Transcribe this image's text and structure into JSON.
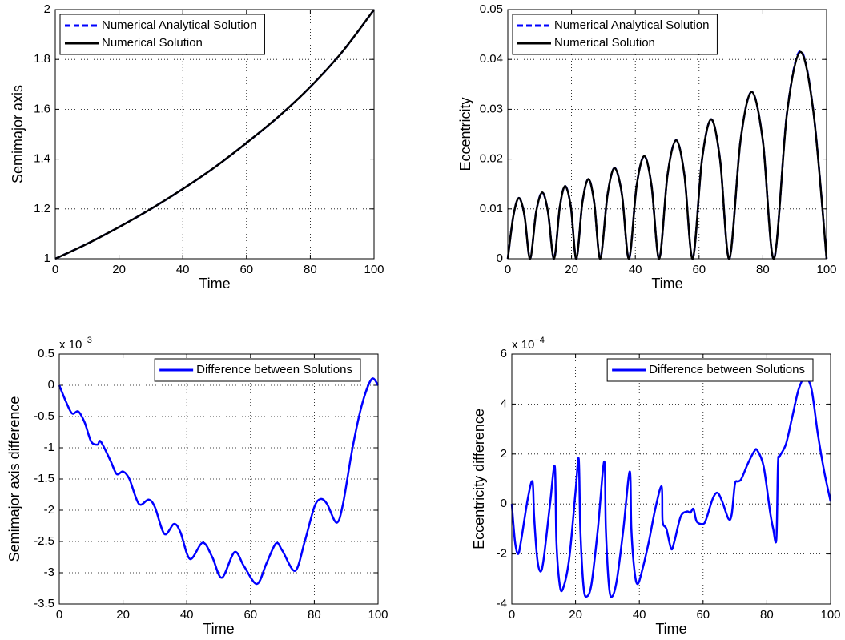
{
  "chart_data": [
    {
      "type": "line",
      "xlabel": "Time",
      "ylabel": "Semimajor axis",
      "x": [
        0,
        10,
        20,
        30,
        40,
        50,
        60,
        70,
        80,
        90,
        100
      ],
      "series": [
        {
          "name": "Numerical Analytical Solution",
          "color": "#0000ff",
          "linestyle": "dashed",
          "values": [
            1,
            1.06,
            1.127,
            1.2,
            1.28,
            1.367,
            1.465,
            1.57,
            1.69,
            1.83,
            2
          ]
        },
        {
          "name": "Numerical Solution",
          "color": "#000000",
          "linestyle": "solid",
          "values": [
            1,
            1.06,
            1.127,
            1.2,
            1.28,
            1.367,
            1.465,
            1.57,
            1.69,
            1.83,
            2
          ]
        }
      ],
      "xlim": [
        0,
        100
      ],
      "ylim": [
        1,
        2
      ],
      "xticks": [
        0,
        20,
        40,
        60,
        80,
        100
      ],
      "yticks": [
        1,
        1.2,
        1.4,
        1.6,
        1.8,
        2
      ],
      "grid": true,
      "legend": "upper left"
    },
    {
      "type": "line",
      "xlabel": "Time",
      "ylabel": "Eccentricity",
      "x": [
        0,
        1.75,
        3.5,
        5.25,
        7,
        8.9,
        10.8,
        12.6,
        14.5,
        16.3,
        18,
        19.8,
        21.5,
        23.4,
        25.3,
        27.1,
        29,
        31.3,
        33.5,
        35.8,
        38,
        40.4,
        42.8,
        45.1,
        47.5,
        50.1,
        52.8,
        55.4,
        58,
        60.9,
        63.8,
        66.6,
        69.5,
        73,
        76.5,
        80,
        83.5,
        87.6,
        91.8,
        95.9,
        100
      ],
      "series": [
        {
          "name": "Numerical Analytical Solution",
          "color": "#0000ff",
          "linestyle": "dashed",
          "values": [
            0,
            0.0086,
            0.0122,
            0.0086,
            0,
            0.0094,
            0.0133,
            0.0094,
            0,
            0.0103,
            0.0146,
            0.0103,
            0,
            0.0113,
            0.016,
            0.0113,
            0,
            0.0129,
            0.0182,
            0.0129,
            0,
            0.0146,
            0.0206,
            0.0146,
            0,
            0.0168,
            0.0238,
            0.0168,
            0,
            0.0198,
            0.028,
            0.0198,
            0,
            0.0237,
            0.0335,
            0.0237,
            0,
            0.0294,
            0.0417,
            0.0294,
            0
          ]
        },
        {
          "name": "Numerical Solution",
          "color": "#000000",
          "linestyle": "solid",
          "values": [
            0,
            0.0086,
            0.0122,
            0.0086,
            0,
            0.0094,
            0.0133,
            0.0094,
            0,
            0.0103,
            0.0146,
            0.0103,
            0,
            0.0113,
            0.016,
            0.0113,
            0,
            0.0129,
            0.0182,
            0.0129,
            0,
            0.0146,
            0.0206,
            0.0146,
            0,
            0.0168,
            0.0238,
            0.0168,
            0,
            0.0198,
            0.028,
            0.0198,
            0,
            0.0237,
            0.0335,
            0.0237,
            0,
            0.0293,
            0.0415,
            0.0293,
            0
          ]
        }
      ],
      "xlim": [
        0,
        100
      ],
      "ylim": [
        0,
        0.05
      ],
      "xticks": [
        0,
        20,
        40,
        60,
        80,
        100
      ],
      "yticks": [
        0,
        0.01,
        0.02,
        0.03,
        0.04,
        0.05
      ],
      "grid": true,
      "legend": "upper left"
    },
    {
      "type": "line",
      "xlabel": "Time",
      "ylabel": "Semimajor axis difference",
      "multiplier_base": "x 10",
      "multiplier_exponent": "−3",
      "x": [
        0,
        2,
        4,
        6,
        8,
        10,
        12,
        13,
        16,
        18,
        20,
        22,
        25,
        28,
        30,
        33,
        36,
        38,
        41,
        45,
        48,
        51,
        55,
        58,
        62,
        65,
        68,
        70,
        74,
        77,
        80,
        82,
        84,
        87,
        89,
        92,
        95,
        98,
        100
      ],
      "series": [
        {
          "name": "Difference between Solutions",
          "color": "#0000ff",
          "linestyle": "solid",
          "values": [
            0,
            -0.25,
            -0.45,
            -0.42,
            -0.6,
            -0.9,
            -0.95,
            -0.9,
            -1.2,
            -1.42,
            -1.38,
            -1.5,
            -1.9,
            -1.83,
            -1.95,
            -2.38,
            -2.22,
            -2.35,
            -2.78,
            -2.52,
            -2.75,
            -3.08,
            -2.67,
            -2.9,
            -3.18,
            -2.85,
            -2.53,
            -2.65,
            -2.97,
            -2.5,
            -1.95,
            -1.82,
            -1.9,
            -2.2,
            -1.9,
            -1.0,
            -0.3,
            0.1,
            0
          ]
        }
      ],
      "xlim": [
        0,
        100
      ],
      "ylim": [
        -3.5,
        0.5
      ],
      "xticks": [
        0,
        20,
        40,
        60,
        80,
        100
      ],
      "yticks": [
        -3.5,
        -3,
        -2.5,
        -2,
        -1.5,
        -1,
        -0.5,
        0,
        0.5
      ],
      "grid": true,
      "legend": "upper right"
    },
    {
      "type": "line",
      "xlabel": "Time",
      "ylabel": "Eccentricity difference",
      "multiplier_base": "x 10",
      "multiplier_exponent": "−4",
      "x": [
        0,
        1,
        2,
        3,
        5,
        6.5,
        7,
        8,
        9,
        10,
        12,
        13.5,
        14,
        15,
        16,
        18,
        20,
        21,
        21.5,
        22.5,
        23.5,
        25,
        27,
        29,
        29.5,
        30.5,
        31.5,
        33,
        35,
        37,
        37.5,
        38.5,
        39.5,
        41,
        43,
        45,
        47,
        47.3,
        48.5,
        50,
        51,
        53,
        55,
        56,
        57,
        58,
        60,
        61,
        63,
        64.5,
        66,
        68,
        69,
        70,
        71,
        72,
        74,
        76,
        77,
        79,
        81,
        82,
        83,
        83.5,
        84,
        86,
        88,
        90,
        92,
        94,
        96,
        98,
        100
      ],
      "series": [
        {
          "name": "Difference between Solutions",
          "color": "#0000ff",
          "linestyle": "solid",
          "values": [
            0,
            -1.5,
            -2.0,
            -1.4,
            0.2,
            0.9,
            -0.5,
            -2.2,
            -2.7,
            -2.2,
            0,
            1.5,
            -1.5,
            -3.2,
            -3.4,
            -2.2,
            0.5,
            1.8,
            -1.0,
            -3.3,
            -3.7,
            -3.2,
            -1.0,
            1.7,
            -1.0,
            -3.3,
            -3.7,
            -3.0,
            -1.0,
            1.3,
            -1.0,
            -2.7,
            -3.2,
            -2.6,
            -1.5,
            -0.2,
            0.7,
            -0.7,
            -1.0,
            -1.8,
            -1.5,
            -0.5,
            -0.3,
            -0.35,
            -0.2,
            -0.7,
            -0.8,
            -0.6,
            0.2,
            0.45,
            0.1,
            -0.6,
            -0.4,
            0.8,
            0.9,
            1.0,
            1.6,
            2.1,
            2.15,
            1.5,
            -0.3,
            -1.0,
            -1.4,
            1.6,
            1.9,
            2.4,
            3.5,
            4.6,
            5.05,
            4.6,
            2.8,
            1.3,
            0.1
          ]
        }
      ],
      "xlim": [
        0,
        100
      ],
      "ylim": [
        -4,
        6
      ],
      "xticks": [
        0,
        20,
        40,
        60,
        80,
        100
      ],
      "yticks": [
        -4,
        -2,
        0,
        2,
        4,
        6
      ],
      "grid": true,
      "legend": "upper right"
    }
  ]
}
